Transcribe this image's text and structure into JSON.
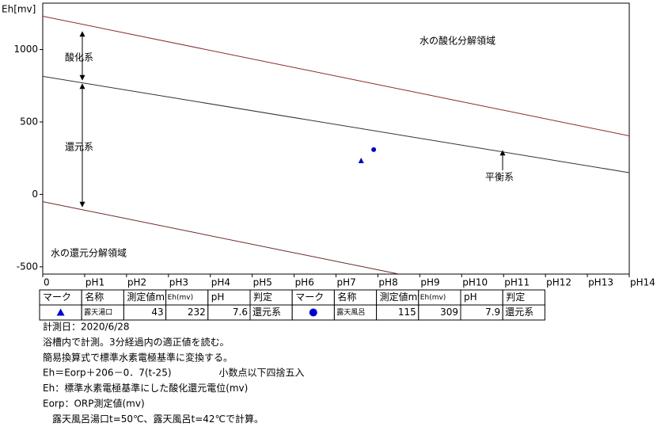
{
  "chart_data": {
    "type": "line",
    "y_label": "Eh[mv]",
    "xlim": [
      0,
      14
    ],
    "xticks": [
      {
        "value": 0,
        "label": "0"
      },
      {
        "value": 1,
        "label": "pH1"
      },
      {
        "value": 2,
        "label": "pH2"
      },
      {
        "value": 3,
        "label": "pH3"
      },
      {
        "value": 4,
        "label": "pH4"
      },
      {
        "value": 5,
        "label": "pH5"
      },
      {
        "value": 6,
        "label": "pH6"
      },
      {
        "value": 7,
        "label": "pH7"
      },
      {
        "value": 8,
        "label": "pH8"
      },
      {
        "value": 9,
        "label": "pH9"
      },
      {
        "value": 10,
        "label": "pH10"
      },
      {
        "value": 11,
        "label": "pH11"
      },
      {
        "value": 12,
        "label": "pH12"
      },
      {
        "value": 13,
        "label": "pH13"
      },
      {
        "value": 14,
        "label": "pH14"
      }
    ],
    "ylim": [
      -550,
      1320
    ],
    "yticks": [
      -500,
      0,
      500,
      1000
    ],
    "series": [
      {
        "color": "#8b2a2a",
        "x": [
          0,
          14
        ],
        "values": [
          1230,
          404
        ]
      },
      {
        "color": "#333333",
        "x": [
          0,
          14
        ],
        "values": [
          815,
          150
        ]
      },
      {
        "color": "#6b2a2a",
        "x": [
          0,
          8.5
        ],
        "values": [
          -50,
          -550
        ]
      },
      {
        "color": "#0000cc",
        "marker": "triangle",
        "x": [
          7.6
        ],
        "values": [
          232
        ]
      },
      {
        "color": "#0000cc",
        "marker": "circle",
        "x": [
          7.9
        ],
        "values": [
          309
        ]
      }
    ],
    "annotations": [
      "水の酸化分解領域",
      "酸化系",
      "還元系",
      "平衡系",
      "水の還元分解領域"
    ]
  },
  "table": {
    "header": [
      "マーク",
      "名称",
      "測定値mv",
      "Eh(mv)",
      "pH",
      "判定",
      "マーク",
      "名称",
      "測定値mv",
      "Eh(mv)",
      "pH",
      "判定"
    ],
    "records": [
      {
        "name": "露天湯口",
        "measured": "43",
        "eh": "232",
        "ph": "7.6",
        "judgment": "還元系"
      },
      {
        "name": "露天風呂",
        "measured": "115",
        "eh": "309",
        "ph": "7.9",
        "judgment": "還元系"
      }
    ]
  },
  "notes": [
    "計測日：2020/6/28",
    "浴槽内で計測。3分経過内の適正値を読む。",
    "簡易換算式で標準水素電極基準に変換する。",
    "Eh＝Eorp＋206－0．7(t-25)　　　　　小数点以下四捨五入",
    "Eh：標準水素電極基準にした酸化還元電位(mv)",
    "Eorp：ORP測定値(mv)",
    "　露天風呂湯口t=50℃、露天風呂t=42℃で計算。"
  ]
}
